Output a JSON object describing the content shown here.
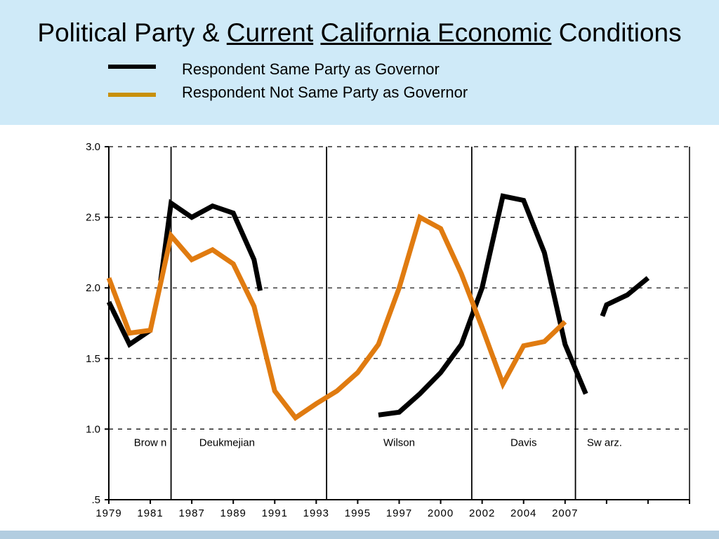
{
  "title": {
    "part1": "Political Party & ",
    "part2": "Current",
    "part3": " ",
    "part4": "California Economic",
    "part5": " Conditions"
  },
  "colors": {
    "header_bg": "#cfeaf8",
    "same_party": "#000000",
    "not_same_party": "#e07b10",
    "legend_not_same_party": "#c8900a"
  },
  "chart_data": {
    "type": "line",
    "xlim": [
      1979,
      2007
    ],
    "ylim": [
      0.5,
      3.0
    ],
    "y_ticks": [
      0.5,
      1.0,
      1.5,
      2.0,
      2.5,
      3.0
    ],
    "y_tick_labels": [
      ".5",
      "1.0",
      "1.5",
      "2.0",
      "2.5",
      "3.0"
    ],
    "x_ticks": [
      1979,
      1981,
      1983,
      1985,
      1987,
      1989,
      1991,
      1993,
      1995,
      1997,
      1999,
      2001,
      2003,
      2005,
      2007
    ],
    "x_tick_labels": [
      "1979",
      "1981",
      "1987",
      "1989",
      "1991",
      "1993",
      "1995",
      "1997",
      "2000",
      "2002",
      "2004",
      "2007"
    ],
    "x_tick_label_positions": [
      1979,
      1981,
      1983,
      1985,
      1987,
      1989,
      1991,
      1993,
      1995,
      1997,
      1999,
      2001
    ],
    "grid": "horizontal dashed",
    "governor_boundaries": [
      1982,
      1989.5,
      1996.5,
      2001.5
    ],
    "governors": [
      {
        "name": "Brow n",
        "x": 1981
      },
      {
        "name": "Deukmejian",
        "x": 1984.7
      },
      {
        "name": "Wilson",
        "x": 1993
      },
      {
        "name": "Davis",
        "x": 1999
      },
      {
        "name": "Sw arz.",
        "x": 2002.9
      }
    ],
    "series": [
      {
        "name": "Respondent Same Party as Governor",
        "segments": [
          [
            [
              1979,
              1.9
            ],
            [
              1980,
              1.6
            ],
            [
              1981,
              1.7
            ]
          ],
          [
            [
              1981.5,
              2.05
            ],
            [
              1982,
              2.6
            ],
            [
              1983,
              2.5
            ],
            [
              1984,
              2.58
            ],
            [
              1985,
              2.53
            ],
            [
              1986,
              2.2
            ],
            [
              1986.3,
              1.98
            ]
          ],
          [
            [
              1992,
              1.1
            ],
            [
              1993,
              1.12
            ],
            [
              1994,
              1.25
            ],
            [
              1995,
              1.4
            ],
            [
              1996,
              1.6
            ],
            [
              1997,
              2.0
            ],
            [
              1998,
              2.65
            ],
            [
              1999,
              2.62
            ],
            [
              2000,
              2.25
            ],
            [
              2001,
              1.6
            ],
            [
              2002,
              1.25
            ]
          ],
          [
            [
              2002.8,
              1.8
            ],
            [
              2003,
              1.88
            ],
            [
              2004,
              1.95
            ],
            [
              2005,
              2.07
            ]
          ]
        ]
      },
      {
        "name": "Respondent Not Same Party as Governor",
        "segments": [
          [
            [
              1979,
              2.07
            ],
            [
              1980,
              1.68
            ],
            [
              1981,
              1.7
            ],
            [
              1982,
              2.37
            ],
            [
              1983,
              2.2
            ],
            [
              1984,
              2.27
            ],
            [
              1985,
              2.17
            ],
            [
              1986,
              1.87
            ],
            [
              1987,
              1.27
            ],
            [
              1988,
              1.08
            ],
            [
              1989,
              1.18
            ],
            [
              1990,
              1.27
            ],
            [
              1991,
              1.4
            ],
            [
              1992,
              1.6
            ],
            [
              1993,
              2.0
            ],
            [
              1994,
              2.5
            ],
            [
              1995,
              2.42
            ],
            [
              1996,
              2.1
            ],
            [
              1997,
              1.72
            ],
            [
              1998,
              1.32
            ],
            [
              1999,
              1.59
            ],
            [
              2000,
              1.62
            ],
            [
              2001,
              1.76
            ]
          ]
        ]
      }
    ]
  }
}
